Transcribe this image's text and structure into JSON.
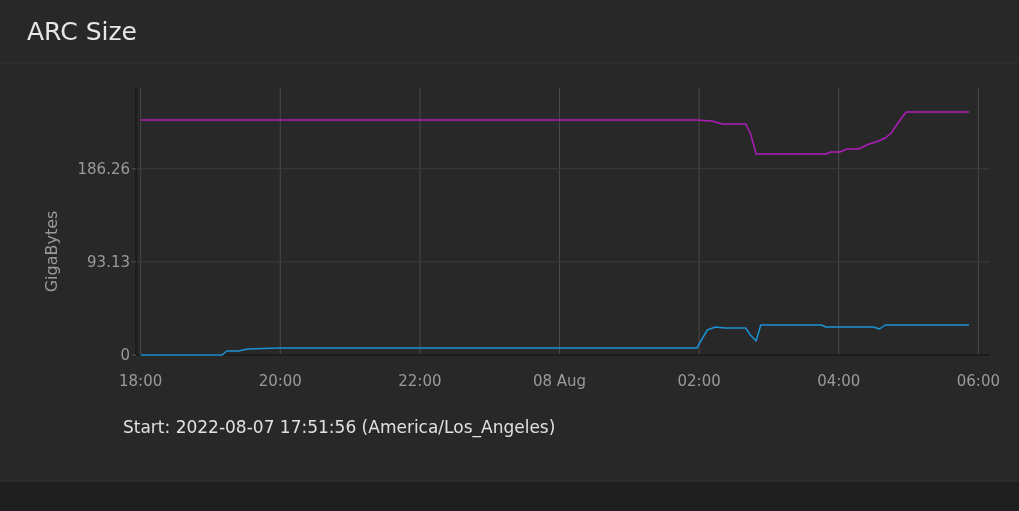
{
  "chart_data": {
    "type": "line",
    "title": "ARC Size",
    "ylabel": "GigaBytes",
    "annotations": [
      "Start: 2022-08-07 17:51:56 (America/Los_Angeles)"
    ],
    "xlim": [
      "2022-08-07T17:56",
      "2022-08-08T06:10"
    ],
    "xticks": [
      {
        "value": "2022-08-07T18:00",
        "label": "18:00"
      },
      {
        "value": "2022-08-07T20:00",
        "label": "20:00"
      },
      {
        "value": "2022-08-07T22:00",
        "label": "22:00"
      },
      {
        "value": "2022-08-08T00:00",
        "label": "08 Aug"
      },
      {
        "value": "2022-08-08T02:00",
        "label": "02:00"
      },
      {
        "value": "2022-08-08T04:00",
        "label": "04:00"
      },
      {
        "value": "2022-08-08T06:00",
        "label": "06:00"
      }
    ],
    "ylim": [
      0,
      267
    ],
    "yticks": [
      0,
      93.13,
      186.26
    ],
    "grid": true,
    "series": [
      {
        "color": "#b01cbc",
        "x": [
          "2022-08-07T18:00",
          "2022-08-08T01:58",
          "2022-08-08T02:11",
          "2022-08-08T02:20",
          "2022-08-08T02:40",
          "2022-08-08T02:44",
          "2022-08-08T02:49",
          "2022-08-08T03:49",
          "2022-08-08T03:53",
          "2022-08-08T04:01",
          "2022-08-08T04:07",
          "2022-08-08T04:17",
          "2022-08-08T04:26",
          "2022-08-08T04:32",
          "2022-08-08T04:40",
          "2022-08-08T04:45",
          "2022-08-08T04:54",
          "2022-08-08T04:58",
          "2022-08-08T05:52"
        ],
        "values": [
          235,
          235,
          234,
          231,
          231,
          222,
          201,
          201,
          203,
          203,
          206,
          206,
          211,
          213,
          217,
          222,
          237,
          243,
          243
        ]
      },
      {
        "color": "#1a92d4",
        "x": [
          "2022-08-07T18:00",
          "2022-08-07T19:10",
          "2022-08-07T19:14",
          "2022-08-07T19:24",
          "2022-08-07T19:32",
          "2022-08-07T19:59",
          "2022-08-08T00:04",
          "2022-08-08T01:58",
          "2022-08-08T02:07",
          "2022-08-08T02:14",
          "2022-08-08T02:22",
          "2022-08-08T02:40",
          "2022-08-08T02:44",
          "2022-08-08T02:49",
          "2022-08-08T02:53",
          "2022-08-08T03:45",
          "2022-08-08T03:49",
          "2022-08-08T04:30",
          "2022-08-08T04:35",
          "2022-08-08T04:40",
          "2022-08-08T05:52"
        ],
        "values": [
          0,
          0,
          4,
          4,
          6,
          7,
          7,
          7,
          25,
          28,
          27,
          27,
          20,
          14,
          30,
          30,
          28,
          28,
          26,
          30,
          30
        ]
      }
    ]
  }
}
